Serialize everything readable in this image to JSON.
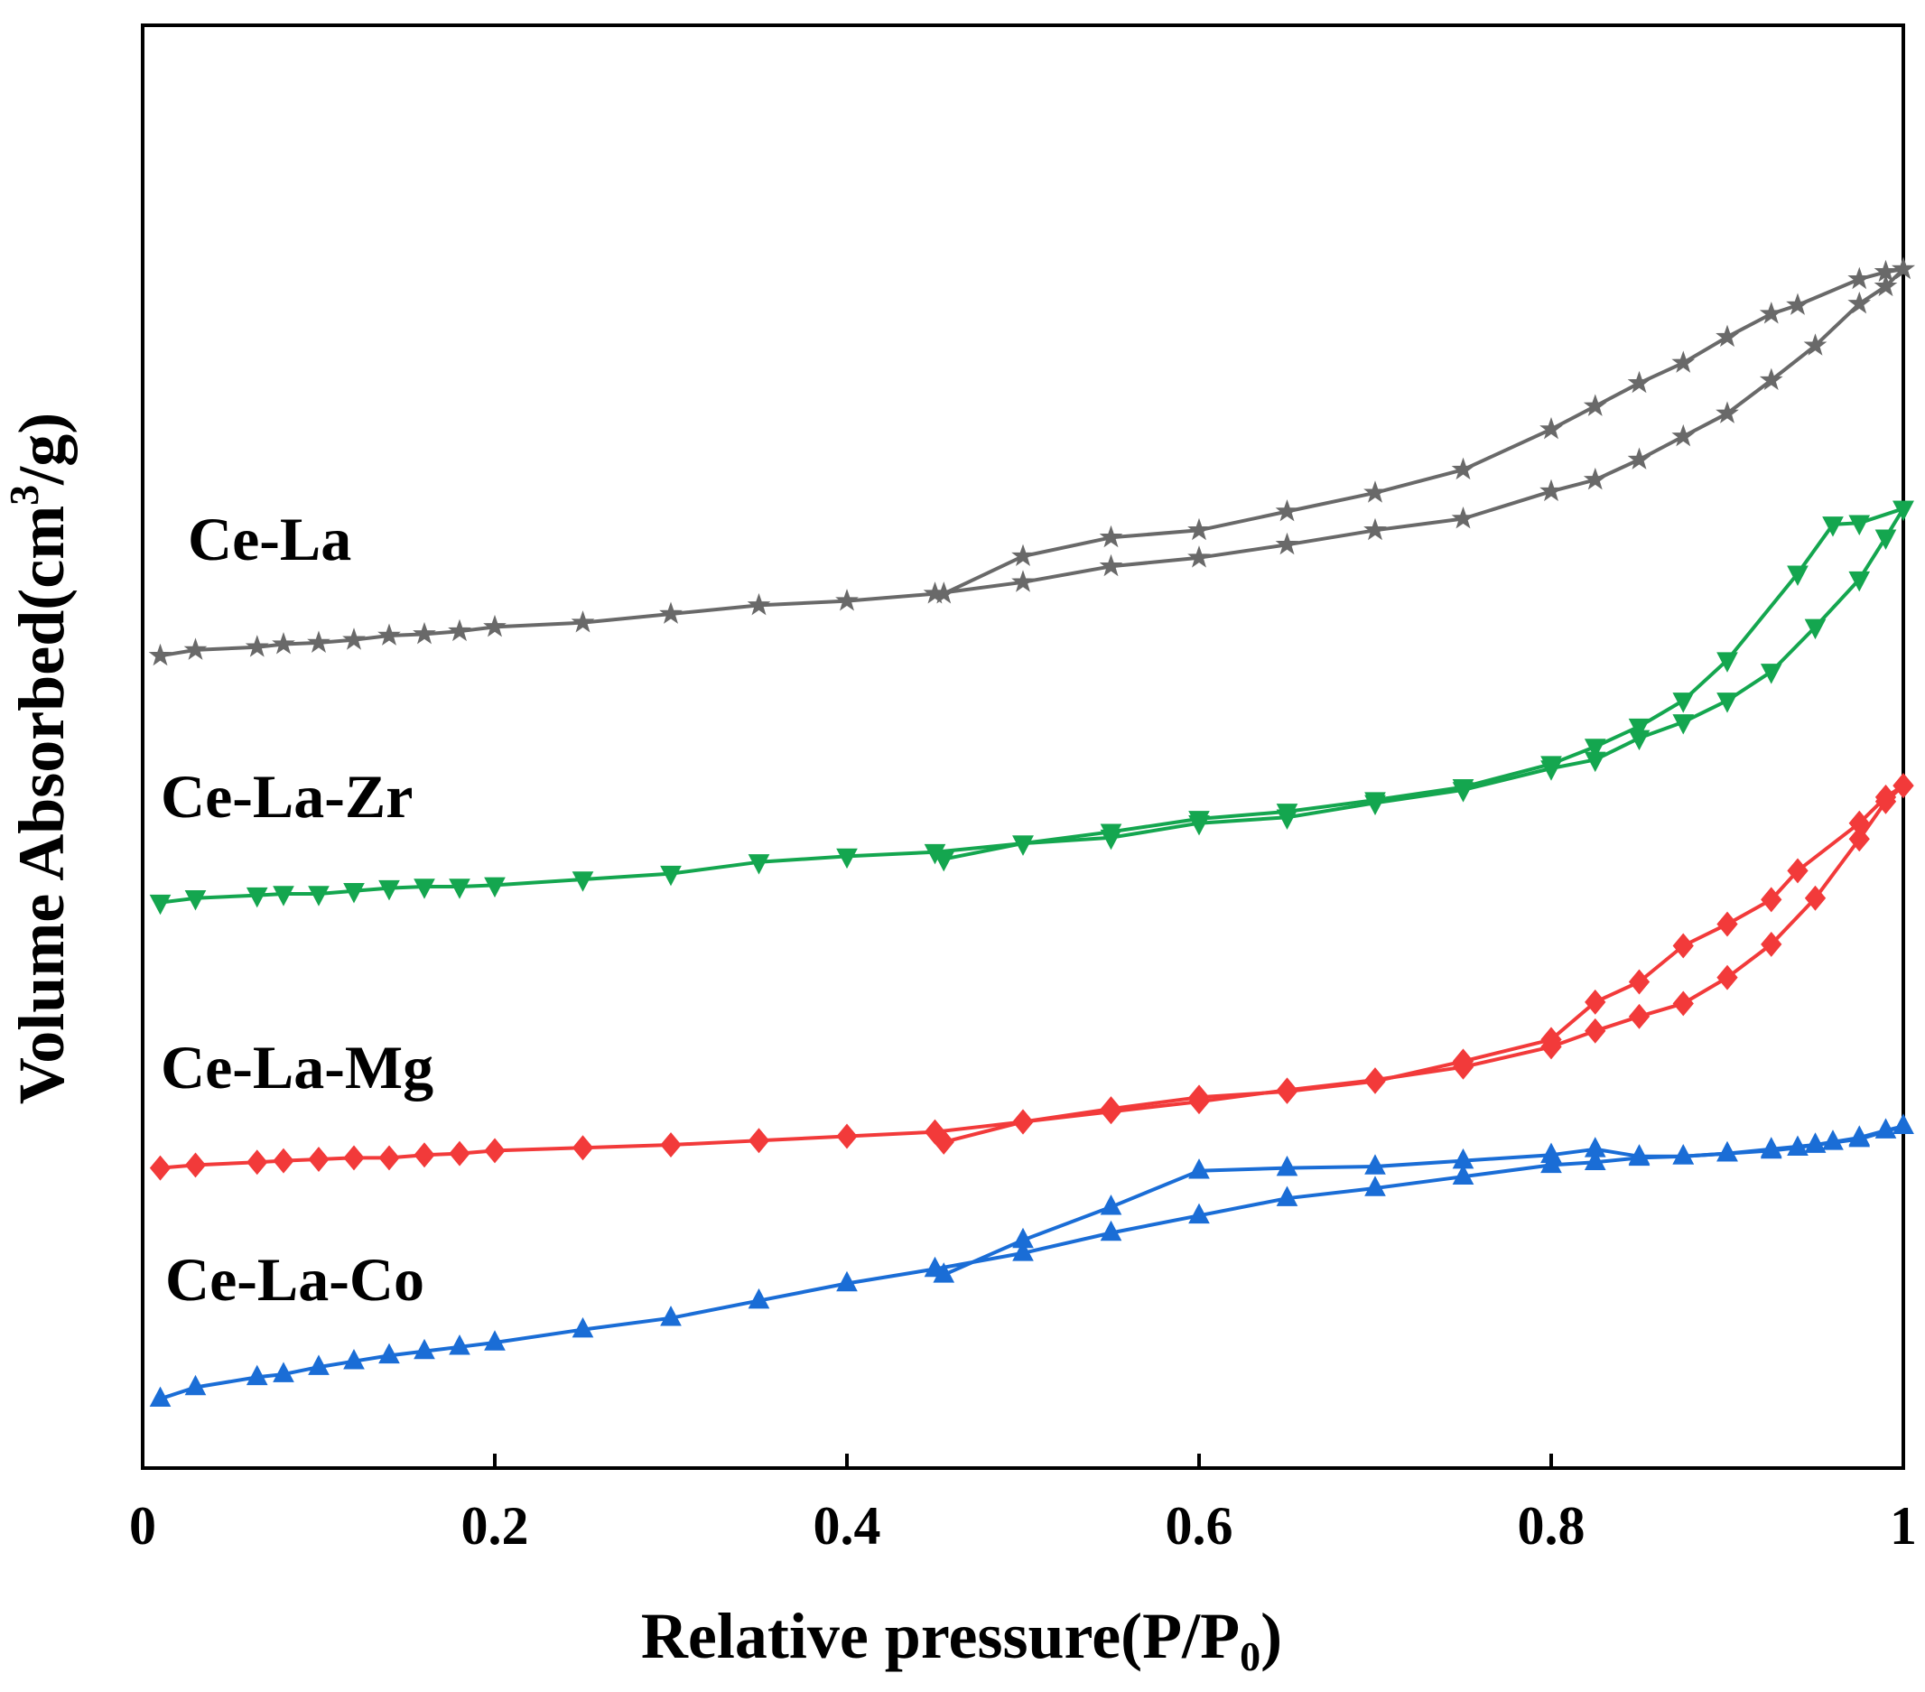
{
  "chart_data": {
    "type": "line",
    "title": "",
    "xlabel": "Relative pressure(P/P",
    "xlabel_sub": "0",
    "xlabel_end": ")",
    "ylabel": "Volume Absorbed(cm",
    "ylabel_sup": "3",
    "ylabel_end": "/g)",
    "xlim": [
      0,
      1
    ],
    "ylim": [
      0,
      100
    ],
    "x_ticks": [
      0,
      0.2,
      0.4,
      0.6,
      0.8,
      1
    ],
    "x_tick_labels": [
      "0",
      "0.2",
      "0.4",
      "0.6",
      "0.8",
      "1"
    ],
    "y_ticks_shown": false,
    "grid": false,
    "series": [
      {
        "name": "Ce-La",
        "label": "Ce-La",
        "color": "#696969",
        "marker": "star",
        "adsorption": [
          [
            0.01,
            56.3
          ],
          [
            0.03,
            56.7
          ],
          [
            0.065,
            56.9
          ],
          [
            0.08,
            57.1
          ],
          [
            0.1,
            57.2
          ],
          [
            0.12,
            57.4
          ],
          [
            0.14,
            57.7
          ],
          [
            0.16,
            57.8
          ],
          [
            0.18,
            58.0
          ],
          [
            0.2,
            58.3
          ],
          [
            0.25,
            58.6
          ],
          [
            0.3,
            59.2
          ],
          [
            0.35,
            59.8
          ],
          [
            0.4,
            60.1
          ],
          [
            0.45,
            60.6
          ],
          [
            0.5,
            61.4
          ],
          [
            0.55,
            62.5
          ],
          [
            0.6,
            63.1
          ],
          [
            0.65,
            64.0
          ],
          [
            0.7,
            65.0
          ],
          [
            0.75,
            65.8
          ],
          [
            0.8,
            67.7
          ],
          [
            0.825,
            68.5
          ],
          [
            0.85,
            69.9
          ],
          [
            0.875,
            71.5
          ],
          [
            0.9,
            73.1
          ],
          [
            0.925,
            75.4
          ],
          [
            0.95,
            77.8
          ],
          [
            0.975,
            80.7
          ],
          [
            0.99,
            81.9
          ],
          [
            1.0,
            83.1
          ]
        ],
        "desorption": [
          [
            1.0,
            83.1
          ],
          [
            0.99,
            82.9
          ],
          [
            0.975,
            82.4
          ],
          [
            0.94,
            80.6
          ],
          [
            0.925,
            80.0
          ],
          [
            0.9,
            78.4
          ],
          [
            0.875,
            76.6
          ],
          [
            0.85,
            75.2
          ],
          [
            0.825,
            73.6
          ],
          [
            0.8,
            72.0
          ],
          [
            0.75,
            69.2
          ],
          [
            0.7,
            67.6
          ],
          [
            0.65,
            66.3
          ],
          [
            0.6,
            65.0
          ],
          [
            0.55,
            64.5
          ],
          [
            0.5,
            63.2
          ],
          [
            0.455,
            60.6
          ]
        ]
      },
      {
        "name": "Ce-La-Zr",
        "label": "Ce-La-Zr",
        "color": "#14A64F",
        "marker": "triangle-down",
        "adsorption": [
          [
            0.01,
            39.2
          ],
          [
            0.03,
            39.5
          ],
          [
            0.065,
            39.7
          ],
          [
            0.08,
            39.8
          ],
          [
            0.1,
            39.8
          ],
          [
            0.12,
            40.0
          ],
          [
            0.14,
            40.2
          ],
          [
            0.16,
            40.3
          ],
          [
            0.18,
            40.3
          ],
          [
            0.2,
            40.4
          ],
          [
            0.25,
            40.8
          ],
          [
            0.3,
            41.2
          ],
          [
            0.35,
            42.0
          ],
          [
            0.4,
            42.4
          ],
          [
            0.45,
            42.7
          ],
          [
            0.5,
            43.3
          ],
          [
            0.55,
            43.7
          ],
          [
            0.6,
            44.7
          ],
          [
            0.65,
            45.1
          ],
          [
            0.7,
            46.1
          ],
          [
            0.75,
            47.0
          ],
          [
            0.8,
            48.5
          ],
          [
            0.825,
            49.1
          ],
          [
            0.85,
            50.6
          ],
          [
            0.875,
            51.7
          ],
          [
            0.9,
            53.2
          ],
          [
            0.925,
            55.2
          ],
          [
            0.95,
            58.3
          ],
          [
            0.975,
            61.6
          ],
          [
            0.99,
            64.5
          ],
          [
            1.0,
            66.5
          ]
        ],
        "desorption": [
          [
            1.0,
            66.5
          ],
          [
            0.975,
            65.5
          ],
          [
            0.96,
            65.4
          ],
          [
            0.94,
            62.0
          ],
          [
            0.9,
            56.0
          ],
          [
            0.875,
            53.2
          ],
          [
            0.85,
            51.4
          ],
          [
            0.825,
            50.0
          ],
          [
            0.8,
            48.8
          ],
          [
            0.75,
            47.2
          ],
          [
            0.7,
            46.3
          ],
          [
            0.65,
            45.5
          ],
          [
            0.6,
            45.0
          ],
          [
            0.55,
            44.1
          ],
          [
            0.5,
            43.3
          ],
          [
            0.455,
            42.2
          ]
        ]
      },
      {
        "name": "Ce-La-Mg",
        "label": "Ce-La-Mg",
        "color": "#F23A3A",
        "marker": "diamond",
        "adsorption": [
          [
            0.01,
            20.8
          ],
          [
            0.03,
            21.0
          ],
          [
            0.065,
            21.2
          ],
          [
            0.08,
            21.3
          ],
          [
            0.1,
            21.4
          ],
          [
            0.12,
            21.5
          ],
          [
            0.14,
            21.5
          ],
          [
            0.16,
            21.7
          ],
          [
            0.18,
            21.8
          ],
          [
            0.2,
            22.0
          ],
          [
            0.25,
            22.2
          ],
          [
            0.3,
            22.4
          ],
          [
            0.35,
            22.7
          ],
          [
            0.4,
            23.0
          ],
          [
            0.45,
            23.3
          ],
          [
            0.5,
            24.0
          ],
          [
            0.55,
            24.7
          ],
          [
            0.6,
            25.4
          ],
          [
            0.65,
            26.2
          ],
          [
            0.7,
            26.9
          ],
          [
            0.75,
            27.8
          ],
          [
            0.8,
            29.2
          ],
          [
            0.825,
            30.3
          ],
          [
            0.85,
            31.3
          ],
          [
            0.875,
            32.2
          ],
          [
            0.9,
            34.0
          ],
          [
            0.925,
            36.3
          ],
          [
            0.95,
            39.5
          ],
          [
            0.975,
            43.6
          ],
          [
            0.99,
            46.2
          ],
          [
            1.0,
            47.3
          ]
        ],
        "desorption": [
          [
            1.0,
            47.3
          ],
          [
            0.99,
            46.5
          ],
          [
            0.975,
            44.7
          ],
          [
            0.94,
            41.4
          ],
          [
            0.925,
            39.4
          ],
          [
            0.9,
            37.7
          ],
          [
            0.875,
            36.2
          ],
          [
            0.85,
            33.7
          ],
          [
            0.825,
            32.3
          ],
          [
            0.8,
            29.7
          ],
          [
            0.75,
            28.2
          ],
          [
            0.7,
            26.8
          ],
          [
            0.65,
            26.1
          ],
          [
            0.6,
            25.7
          ],
          [
            0.55,
            24.9
          ],
          [
            0.5,
            24.0
          ],
          [
            0.455,
            22.6
          ]
        ]
      },
      {
        "name": "Ce-La-Co",
        "label": "Ce-La-Co",
        "color": "#1A6DD6",
        "marker": "triangle-up",
        "adsorption": [
          [
            0.01,
            4.8
          ],
          [
            0.03,
            5.6
          ],
          [
            0.065,
            6.3
          ],
          [
            0.08,
            6.5
          ],
          [
            0.1,
            7.0
          ],
          [
            0.12,
            7.4
          ],
          [
            0.14,
            7.8
          ],
          [
            0.16,
            8.1
          ],
          [
            0.18,
            8.4
          ],
          [
            0.2,
            8.7
          ],
          [
            0.25,
            9.6
          ],
          [
            0.3,
            10.4
          ],
          [
            0.35,
            11.6
          ],
          [
            0.4,
            12.8
          ],
          [
            0.45,
            13.8
          ],
          [
            0.5,
            14.9
          ],
          [
            0.55,
            16.3
          ],
          [
            0.6,
            17.5
          ],
          [
            0.65,
            18.7
          ],
          [
            0.7,
            19.4
          ],
          [
            0.75,
            20.2
          ],
          [
            0.8,
            21.0
          ],
          [
            0.825,
            21.2
          ],
          [
            0.85,
            21.5
          ],
          [
            0.875,
            21.6
          ],
          [
            0.9,
            21.8
          ],
          [
            0.925,
            22.0
          ],
          [
            0.94,
            22.2
          ],
          [
            0.95,
            22.4
          ],
          [
            0.96,
            22.6
          ],
          [
            0.975,
            22.9
          ],
          [
            0.99,
            23.4
          ],
          [
            1.0,
            23.7
          ]
        ],
        "desorption": [
          [
            1.0,
            23.7
          ],
          [
            0.975,
            22.8
          ],
          [
            0.95,
            22.4
          ],
          [
            0.925,
            22.1
          ],
          [
            0.9,
            21.8
          ],
          [
            0.875,
            21.6
          ],
          [
            0.85,
            21.6
          ],
          [
            0.825,
            22.1
          ],
          [
            0.8,
            21.7
          ],
          [
            0.75,
            21.3
          ],
          [
            0.7,
            20.9
          ],
          [
            0.65,
            20.8
          ],
          [
            0.6,
            20.6
          ],
          [
            0.55,
            18.1
          ],
          [
            0.5,
            15.8
          ],
          [
            0.455,
            13.4
          ]
        ]
      }
    ]
  }
}
